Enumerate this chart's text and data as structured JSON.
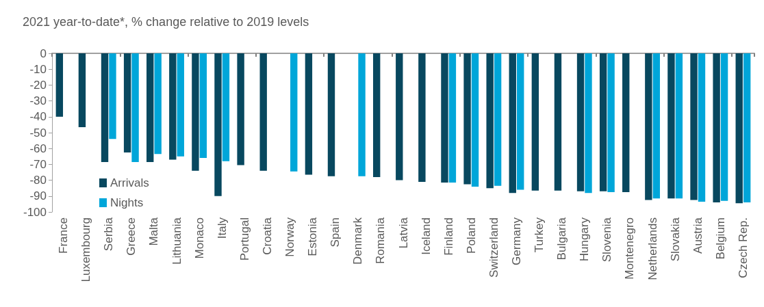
{
  "chart_data": {
    "type": "bar",
    "title": "2021 year-to-date*, % change relative to 2019 levels",
    "categories": [
      "France",
      "Luxembourg",
      "Serbia",
      "Greece",
      "Malta",
      "Lithuania",
      "Monaco",
      "Italy",
      "Portugal",
      "Croatia",
      "Norway",
      "Estonia",
      "Spain",
      "Denmark",
      "Romania",
      "Latvia",
      "Iceland",
      "Finland",
      "Poland",
      "Switzerland",
      "Germany",
      "Turkey",
      "Bulgaria",
      "Hungary",
      "Slovenia",
      "Montenegro",
      "Netherlands",
      "Slovakia",
      "Austria",
      "Belgium",
      "Czech Rep."
    ],
    "series": [
      {
        "name": "Arrivals",
        "color": "#08485f",
        "values": [
          -40,
          -46.5,
          -68.5,
          -62.5,
          -68.5,
          -67,
          -74,
          -90,
          -70.5,
          -74,
          null,
          -76.5,
          -77.5,
          null,
          -78,
          -80,
          -81,
          -81.5,
          -82.5,
          -85,
          -88,
          -86.5,
          -86.5,
          -87,
          -87,
          -87.5,
          -92.5,
          -91.5,
          -92.5,
          -94,
          -94.5
        ]
      },
      {
        "name": "Nights",
        "color": "#00a6d9",
        "values": [
          null,
          null,
          -54,
          -68.5,
          -63.5,
          -65,
          -66,
          -68,
          null,
          null,
          -74.5,
          null,
          null,
          -77.5,
          null,
          null,
          null,
          -81.5,
          -84,
          -83.5,
          -86,
          null,
          null,
          -88,
          -87.5,
          null,
          -91.5,
          -91.5,
          -93.5,
          -93,
          -94
        ]
      }
    ],
    "ylim": [
      -100,
      0
    ],
    "yticks": [
      -100,
      -90,
      -80,
      -70,
      -60,
      -50,
      -40,
      -30,
      -20,
      -10,
      0
    ],
    "grid": false,
    "legend": "bottom left"
  }
}
